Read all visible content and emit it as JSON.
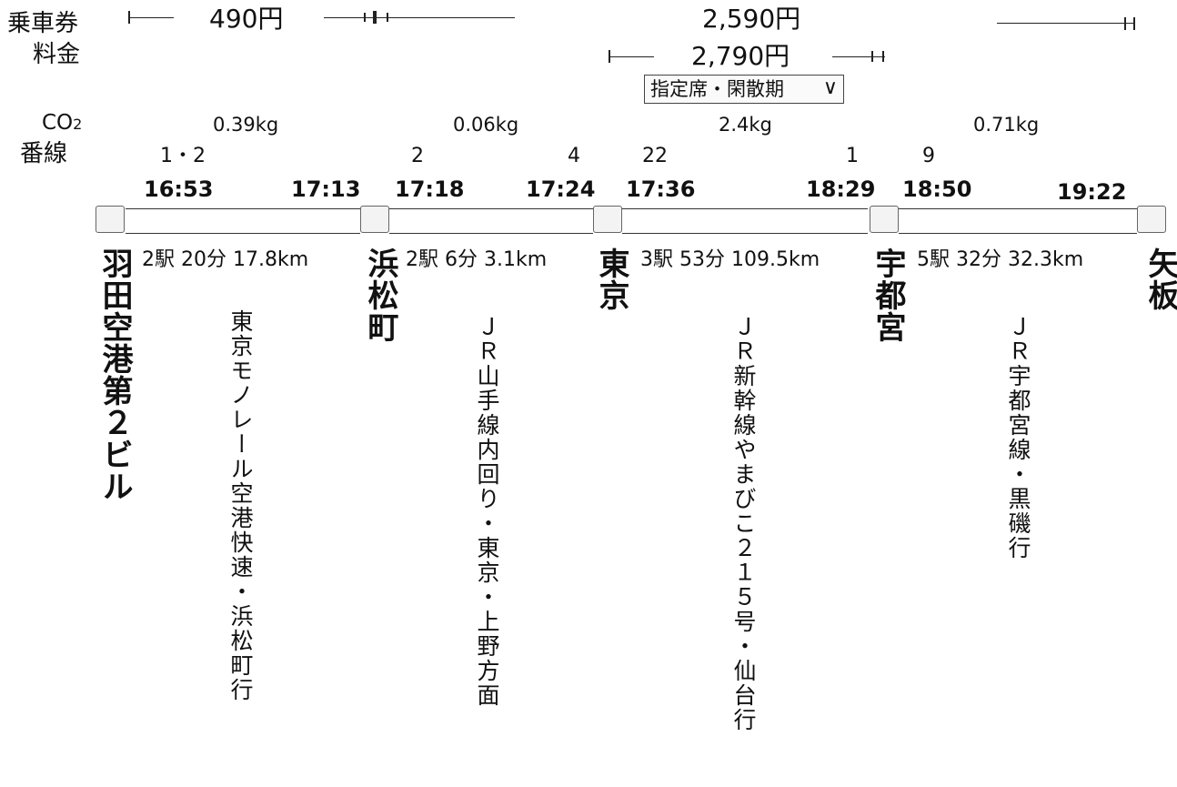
{
  "labels": {
    "fare_line1": "乗車券",
    "fare_line2": "料金",
    "co2": "CO",
    "co2_sub": "2",
    "platform": "番線"
  },
  "fares": {
    "ticket_first": "490円",
    "ticket_second": "2,590円",
    "express_fee": "2,790円",
    "seat_option": "指定席・閑散期"
  },
  "co2_values": [
    "0.39kg",
    "0.06kg",
    "2.4kg",
    "0.71kg"
  ],
  "platforms": [
    "1・2",
    "2",
    "4",
    "22",
    "1",
    "9"
  ],
  "times": [
    "16:53",
    "17:13",
    "17:18",
    "17:24",
    "17:36",
    "18:29",
    "18:50",
    "19:22"
  ],
  "stations": [
    "羽田空港第２ビル",
    "浜松町",
    "東京",
    "宇都宮",
    "矢板"
  ],
  "segments": [
    {
      "info": "2駅 20分 17.8km",
      "line": "東京モノレール空港快速・浜松町行"
    },
    {
      "info": "2駅 6分 3.1km",
      "line": "ＪＲ山手線内回り・東京・上野方面"
    },
    {
      "info": "3駅 53分 109.5km",
      "line": "ＪＲ新幹線やまびこ２１５号・仙台行"
    },
    {
      "info": "5駅 32分 32.3km",
      "line": "ＪＲ宇都宮線・黒磯行"
    }
  ]
}
